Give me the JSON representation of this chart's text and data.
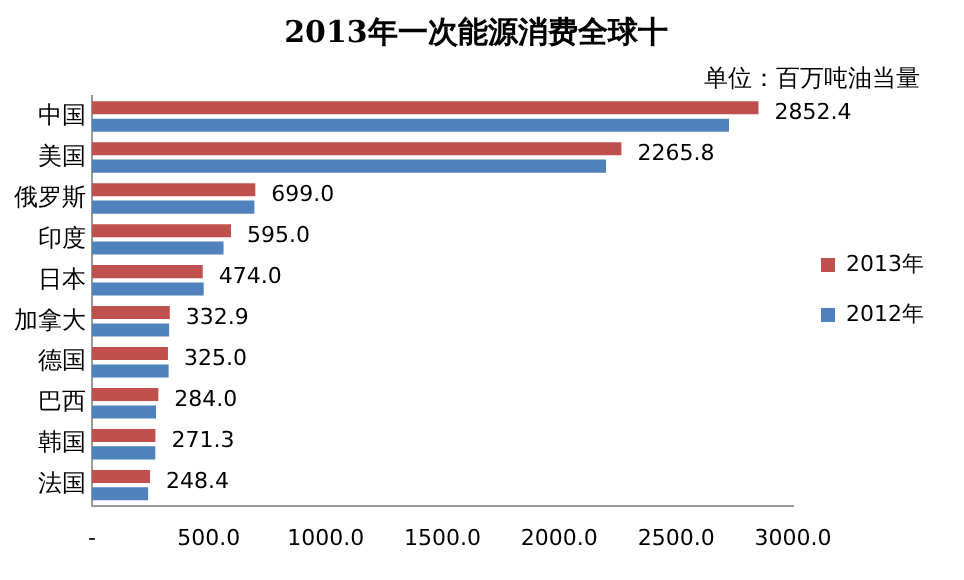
{
  "chart_data": {
    "type": "bar",
    "orientation": "horizontal",
    "title": "2013年一次能源消费全球十",
    "annotations": [
      "单位：百万吨油当量"
    ],
    "categories": [
      "中国",
      "美国",
      "俄罗斯",
      "印度",
      "日本",
      "加拿大",
      "德国",
      "巴西",
      "韩国",
      "法国"
    ],
    "series": [
      {
        "name": "2013年",
        "color": "#c0504d",
        "values": [
          2852.4,
          2265.8,
          699.0,
          595.0,
          474.0,
          332.9,
          325.0,
          284.0,
          271.3,
          248.4
        ],
        "value_labels": [
          "2852.4",
          "2265.8",
          "699.0",
          "595.0",
          "474.0",
          "332.9",
          "325.0",
          "284.0",
          "271.3",
          "248.4"
        ]
      },
      {
        "name": "2012年",
        "color": "#4f81bd",
        "values": [
          2726,
          2200,
          695,
          563,
          478,
          330,
          328,
          274,
          271,
          240
        ]
      }
    ],
    "xlim": [
      0,
      3000
    ],
    "xticks": [
      {
        "value": 0,
        "label": "-"
      },
      {
        "value": 500,
        "label": "500.0"
      },
      {
        "value": 1000,
        "label": "1000.0"
      },
      {
        "value": 1500,
        "label": "1500.0"
      },
      {
        "value": 2000,
        "label": "2000.0"
      },
      {
        "value": 2500,
        "label": "2500.0"
      },
      {
        "value": 3000,
        "label": "3000.0"
      }
    ],
    "grid": false,
    "legend": "right"
  }
}
